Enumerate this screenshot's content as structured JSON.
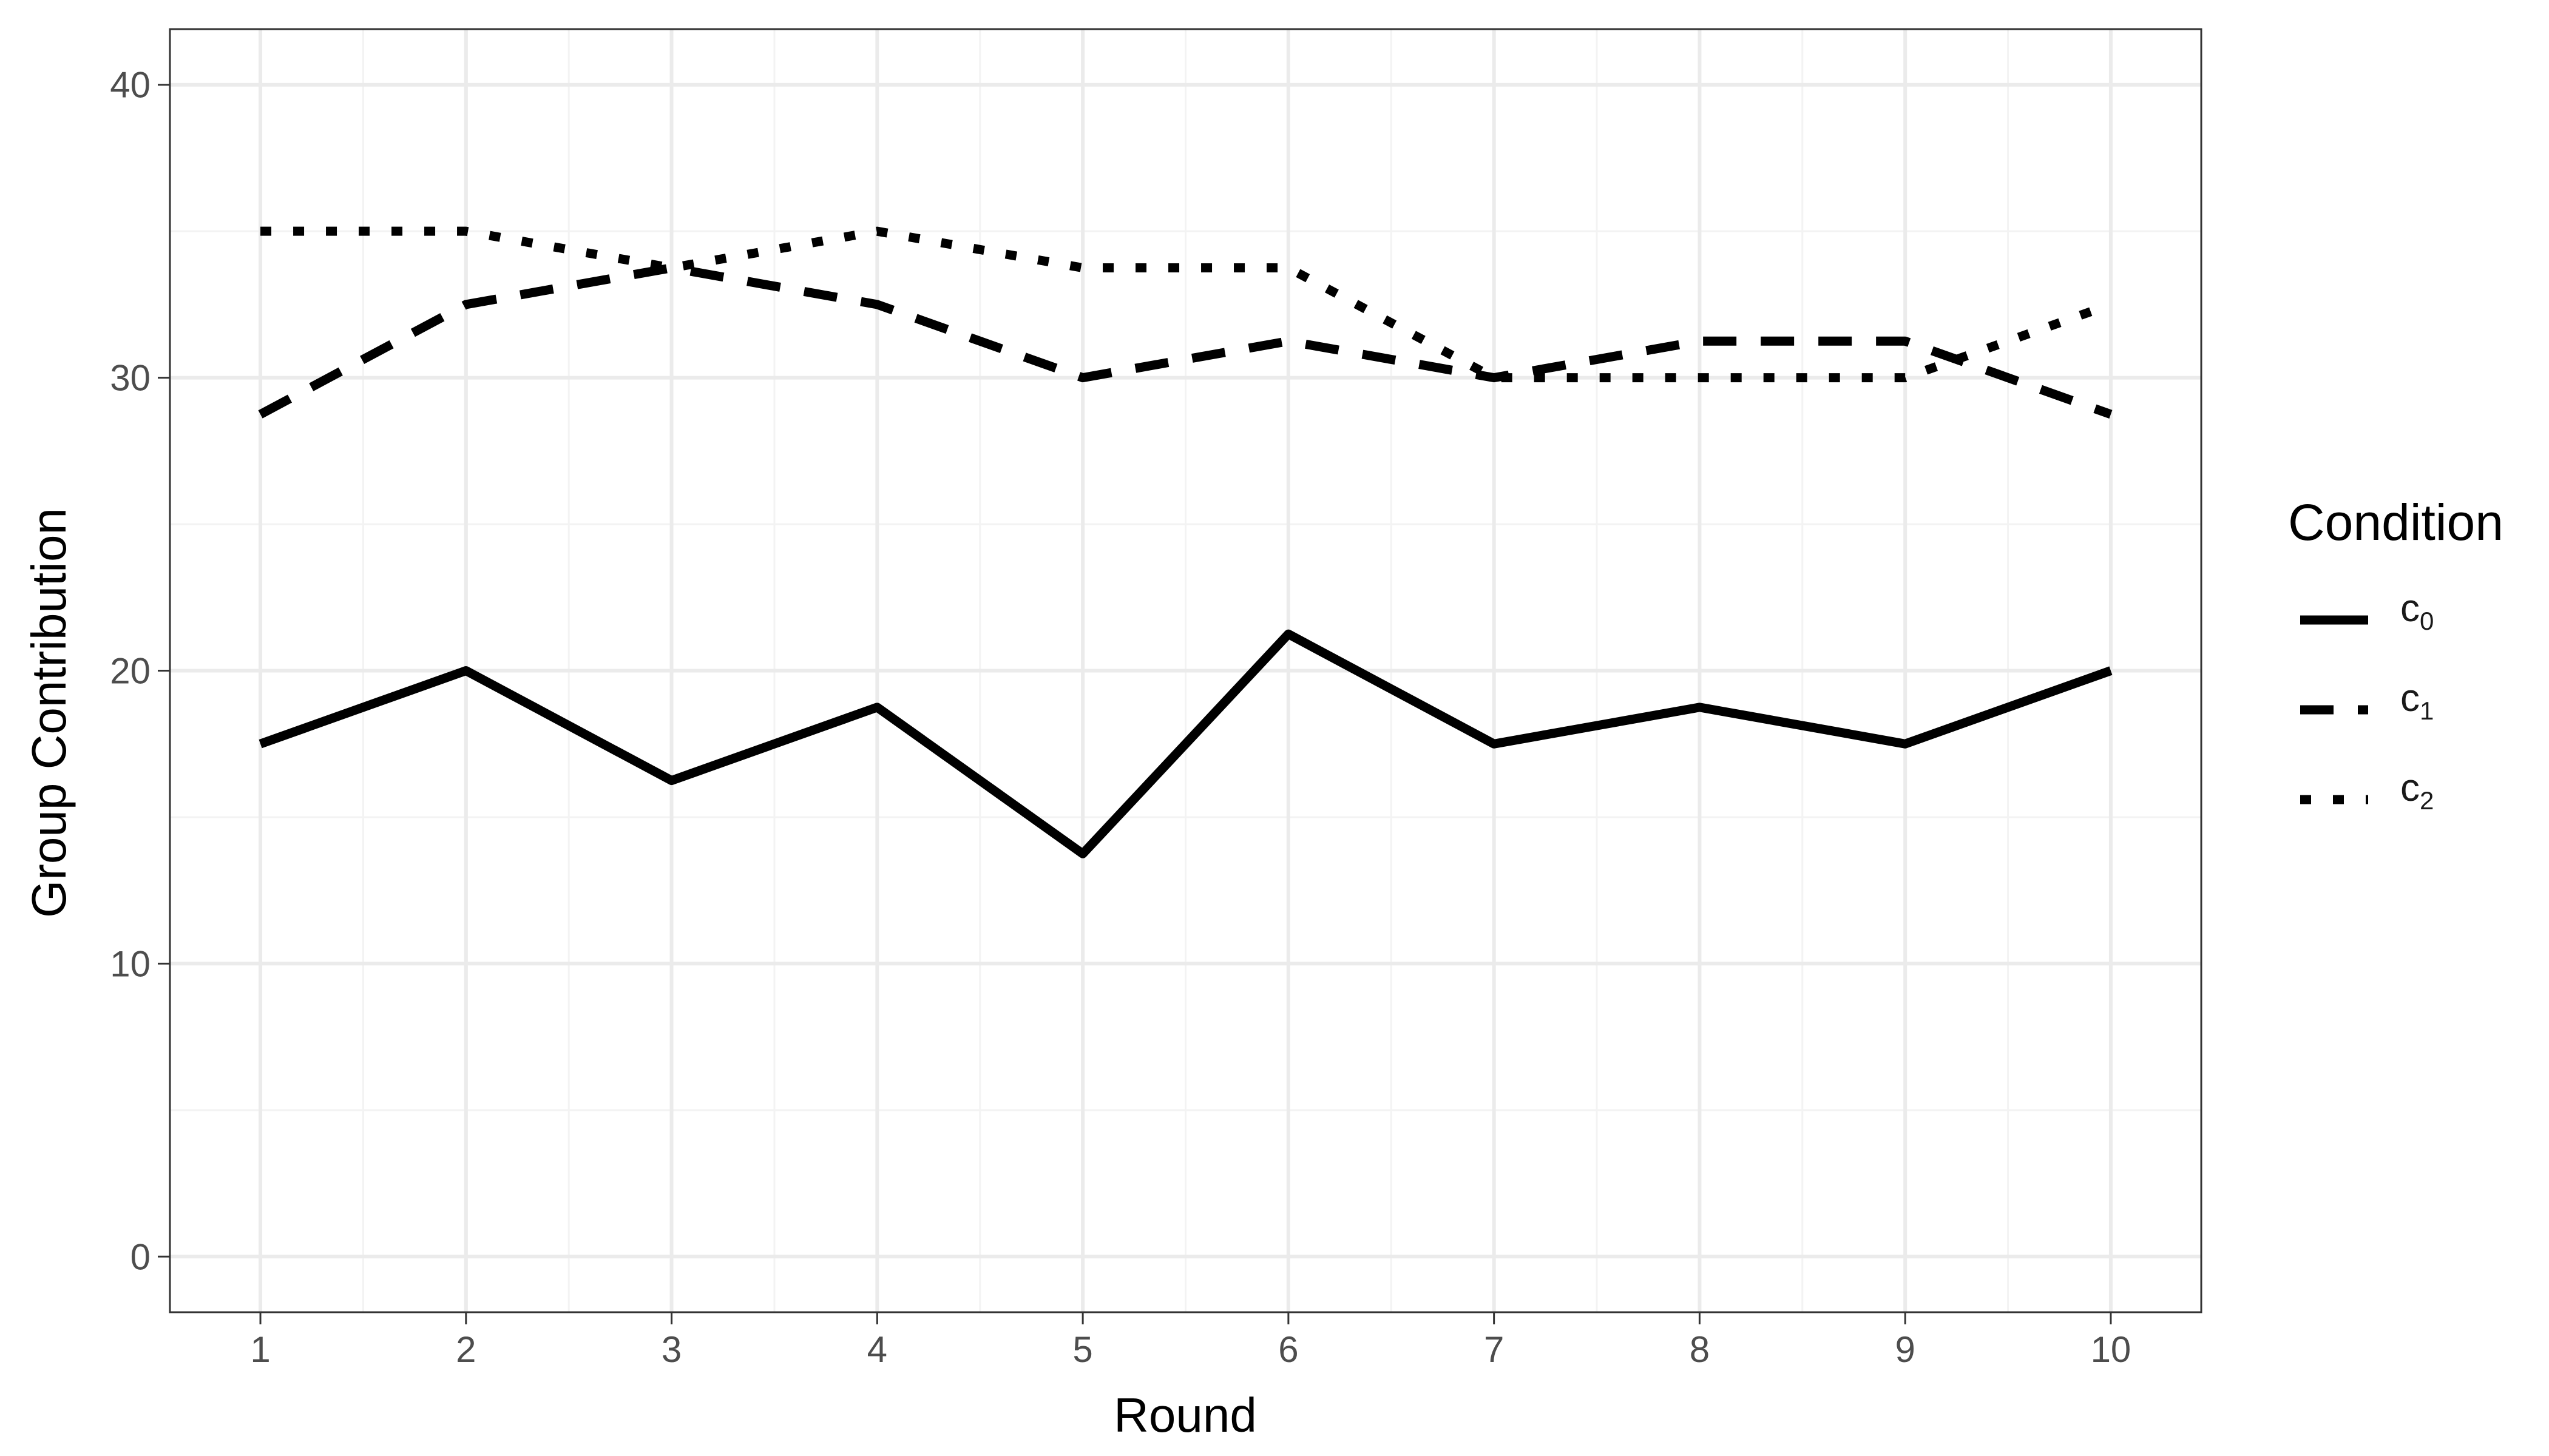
{
  "chart_data": {
    "type": "line",
    "xlabel": "Round",
    "ylabel": "Group Contribution",
    "xlim": [
      0.56,
      10.44
    ],
    "ylim": [
      -1.9,
      41.9
    ],
    "x_ticks": [
      1,
      2,
      3,
      4,
      5,
      6,
      7,
      8,
      9,
      10
    ],
    "y_ticks": [
      0,
      10,
      20,
      30,
      40
    ],
    "grid": true,
    "legend": {
      "title": "Condition",
      "position": "right",
      "entries": [
        {
          "base": "c",
          "sub": "0",
          "dash": "solid"
        },
        {
          "base": "c",
          "sub": "1",
          "dash": "dashed"
        },
        {
          "base": "c",
          "sub": "2",
          "dash": "dotted"
        }
      ]
    },
    "x": [
      1,
      2,
      3,
      4,
      5,
      6,
      7,
      8,
      9,
      10
    ],
    "series": [
      {
        "key": "c0",
        "dash": "solid",
        "values": [
          17.5,
          20.0,
          16.25,
          18.75,
          13.75,
          21.25,
          17.5,
          18.75,
          17.5,
          20.0
        ]
      },
      {
        "key": "c1",
        "dash": "dashed",
        "values": [
          28.75,
          32.5,
          33.75,
          32.5,
          30.0,
          31.25,
          30.0,
          31.25,
          31.25,
          28.75
        ]
      },
      {
        "key": "c2",
        "dash": "dotted",
        "values": [
          35.0,
          35.0,
          33.75,
          35.0,
          33.75,
          33.75,
          30.0,
          30.0,
          30.0,
          32.5
        ]
      }
    ],
    "colors": {
      "line": "#000000",
      "grid_major": "#ebebeb",
      "grid_minor": "#f3f3f3",
      "panel_border": "#333333"
    }
  }
}
